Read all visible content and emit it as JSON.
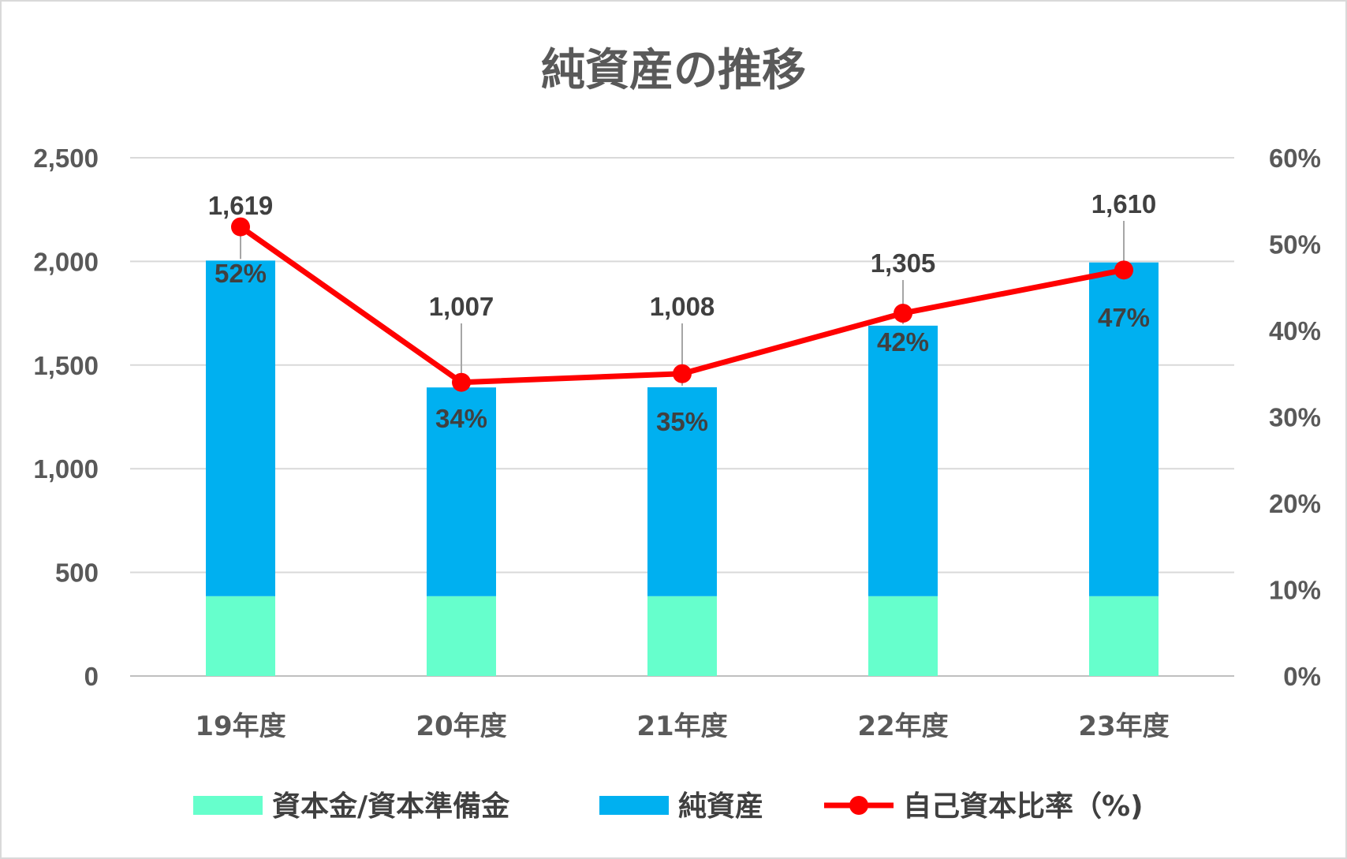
{
  "chart_data": {
    "type": "bar",
    "title": "純資産の推移",
    "categories": [
      "19年度",
      "20年度",
      "21年度",
      "22年度",
      "23年度"
    ],
    "stacked": true,
    "series": [
      {
        "name": "資本金/資本準備金",
        "kind": "bar",
        "axis": "left",
        "color": "#66ffcc",
        "values": [
          385,
          385,
          385,
          385,
          385
        ]
      },
      {
        "name": "純資産",
        "kind": "bar",
        "axis": "left",
        "color": "#00b0f0",
        "values": [
          1619,
          1007,
          1008,
          1305,
          1610
        ],
        "labels": [
          "1,619",
          "1,007",
          "1,008",
          "1,305",
          "1,610"
        ]
      },
      {
        "name": "自己資本比率（%)",
        "kind": "line",
        "axis": "right",
        "color": "#ff0000",
        "values": [
          52,
          34,
          35,
          42,
          47
        ],
        "labels": [
          "52%",
          "34%",
          "35%",
          "42%",
          "47%"
        ]
      }
    ],
    "y_left": {
      "ylim": [
        0,
        2500
      ],
      "ticks": [
        "0",
        "500",
        "1,000",
        "1,500",
        "2,000",
        "2,500"
      ]
    },
    "y_right": {
      "ylim": [
        0,
        60
      ],
      "ticks": [
        "0%",
        "10%",
        "20%",
        "30%",
        "40%",
        "50%",
        "60%"
      ]
    },
    "grid": true,
    "legend": "bottom"
  }
}
